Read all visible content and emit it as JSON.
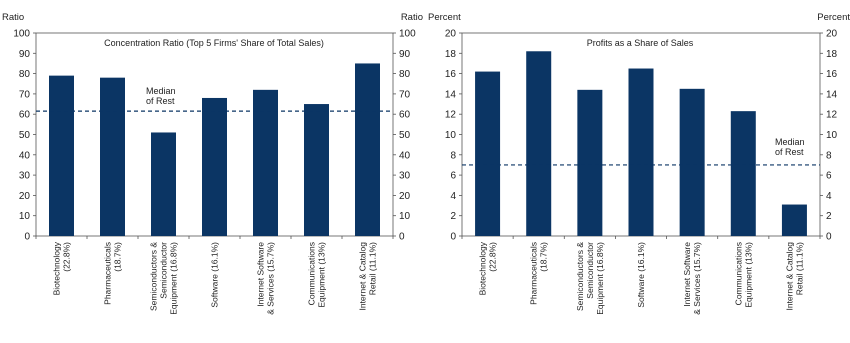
{
  "colors": {
    "bar": "#0b3564",
    "median_line": "#0b3564",
    "axis": "#555555",
    "background": "#ffffff"
  },
  "chart_data": [
    {
      "type": "bar",
      "title": "Concentration Ratio (Top 5 Firms' Share of Total Sales)",
      "ylabel_left": "Ratio",
      "ylabel_right": "Ratio",
      "ylim": [
        0,
        100
      ],
      "yticks": [
        "0",
        "10",
        "20",
        "30",
        "40",
        "50",
        "60",
        "70",
        "80",
        "90",
        "100"
      ],
      "categories": [
        [
          "Biotechnology",
          "(22.8%)"
        ],
        [
          "Pharmaceuticals",
          "(18.7%)"
        ],
        [
          "Semiconductors &",
          "Semiconductor",
          "Equipment (16.8%)"
        ],
        [
          "Software (16.1%)"
        ],
        [
          "Internet Software",
          "& Services (15.7%)"
        ],
        [
          "Communications",
          "Equipment (13%)"
        ],
        [
          "Internet & Catalog",
          "Retail (11.1%)"
        ]
      ],
      "values": [
        79,
        78,
        51,
        68,
        72,
        65,
        85
      ],
      "median": {
        "label": [
          "Median",
          "of Rest"
        ],
        "value": 61.5
      },
      "grid": false
    },
    {
      "type": "bar",
      "title": "Profits as a Share of Sales",
      "ylabel_left": "Percent",
      "ylabel_right": "Percent",
      "ylim": [
        0,
        20
      ],
      "yticks": [
        "0",
        "2",
        "4",
        "6",
        "8",
        "10",
        "12",
        "14",
        "16",
        "18",
        "20"
      ],
      "categories": [
        [
          "Biotechnology",
          "(22.8%)"
        ],
        [
          "Pharmaceuticals",
          "(18.7%)"
        ],
        [
          "Semiconductors &",
          "Semiconductor",
          "Equipment (16.8%)"
        ],
        [
          "Software (16.1%)"
        ],
        [
          "Internet Software",
          "& Services (15.7%)"
        ],
        [
          "Communications",
          "Equipment (13%)"
        ],
        [
          "Internet & Catalog",
          "Retail (11.1%)"
        ]
      ],
      "values": [
        16.2,
        18.2,
        14.4,
        16.5,
        14.5,
        12.3,
        3.1
      ],
      "median": {
        "label": [
          "Median",
          "of Rest"
        ],
        "value": 7
      },
      "grid": false
    }
  ]
}
